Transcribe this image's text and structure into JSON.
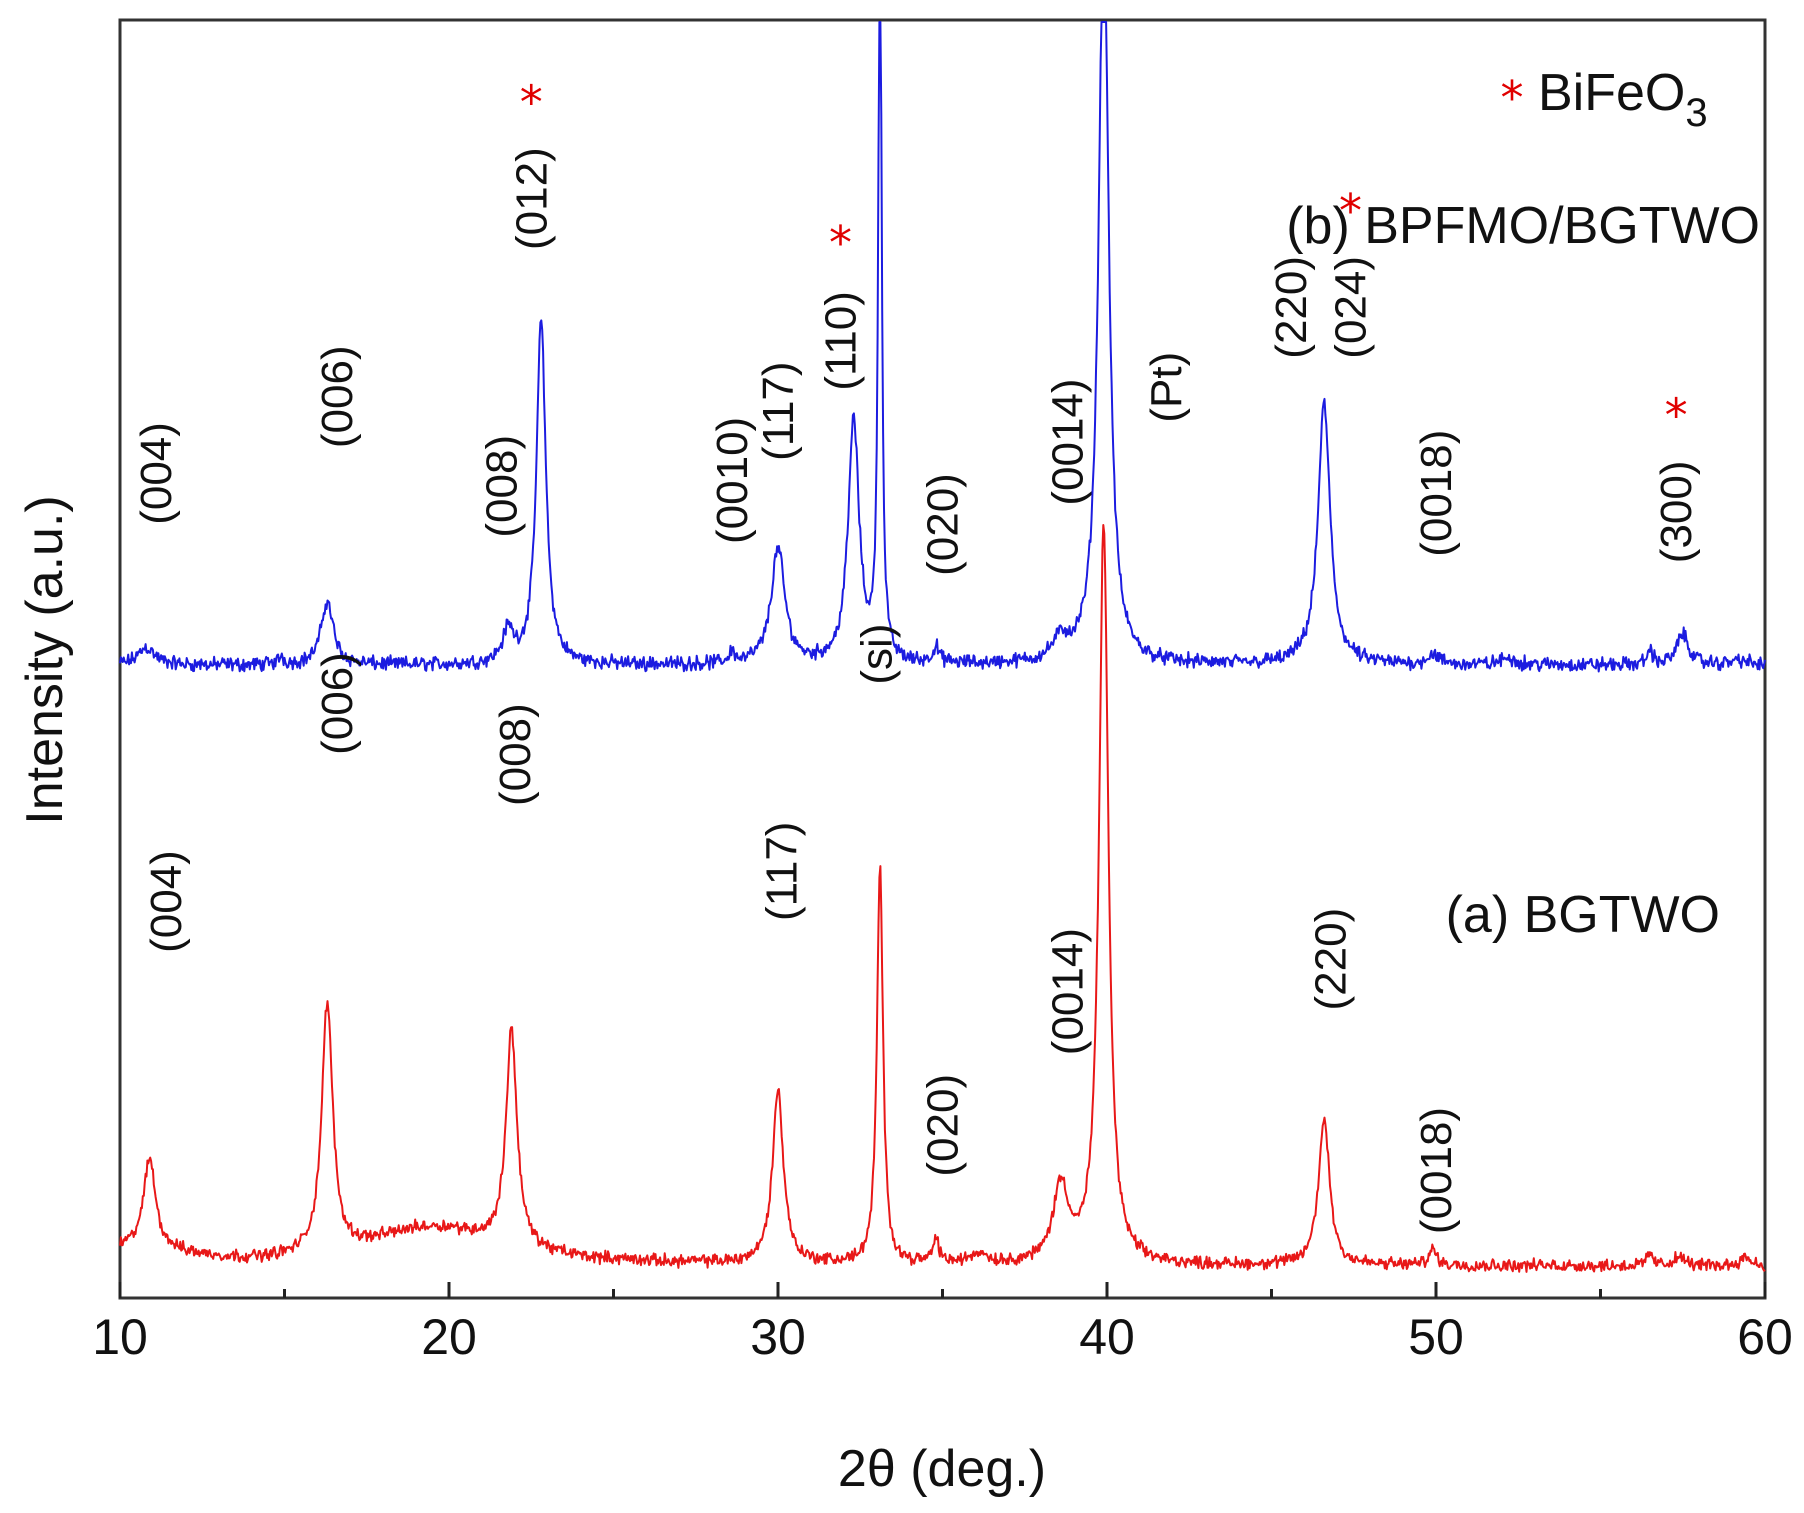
{
  "chart_data": {
    "type": "line",
    "xlabel": "2θ (deg.)",
    "ylabel": "Intensity (a.u.)",
    "xlim": [
      10,
      60
    ],
    "ylim": [
      0,
      100
    ],
    "x_ticks": [
      "10",
      "20",
      "30",
      "40",
      "50",
      "60"
    ],
    "legend": {
      "marker": "*",
      "text": "BiFeO",
      "subscript": "3",
      "color": "#e00000"
    },
    "series": [
      {
        "name": "(b) BPFMO/BGTWO",
        "color": "#1c1ce0",
        "baseline": 49.5,
        "noise": 0.7,
        "peaks": [
          {
            "x": 10.8,
            "h": 1.4,
            "w": 0.3
          },
          {
            "x": 14.9,
            "h": 0.6,
            "w": 0.1
          },
          {
            "x": 16.3,
            "h": 5.0,
            "w": 0.22
          },
          {
            "x": 21.8,
            "h": 2.5,
            "w": 0.2
          },
          {
            "x": 22.8,
            "h": 27.0,
            "w": 0.17
          },
          {
            "x": 28.6,
            "h": 0.9,
            "w": 0.1
          },
          {
            "x": 30.0,
            "h": 9.0,
            "w": 0.25
          },
          {
            "x": 32.3,
            "h": 19.0,
            "w": 0.2
          },
          {
            "x": 33.1,
            "h": 60.0,
            "w": 0.06
          },
          {
            "x": 34.8,
            "h": 1.2,
            "w": 0.12
          },
          {
            "x": 38.6,
            "h": 1.6,
            "w": 0.3
          },
          {
            "x": 39.9,
            "h": 60.0,
            "w": 0.18
          },
          {
            "x": 46.6,
            "h": 20.5,
            "w": 0.22
          },
          {
            "x": 49.9,
            "h": 0.8,
            "w": 0.2
          },
          {
            "x": 52.2,
            "h": 0.5,
            "w": 0.3
          },
          {
            "x": 56.5,
            "h": 1.2,
            "w": 0.1
          },
          {
            "x": 57.5,
            "h": 2.4,
            "w": 0.22
          },
          {
            "x": 59.2,
            "h": 0.4,
            "w": 0.3
          }
        ]
      },
      {
        "name": "(a) BGTWO",
        "color": "#e81818",
        "baseline": 2.5,
        "noise": 0.6,
        "peaks": [
          {
            "x": 10.9,
            "h": 7.0,
            "w": 0.22
          },
          {
            "x": 16.3,
            "h": 19.5,
            "w": 0.2
          },
          {
            "x": 19.5,
            "h": 3.0,
            "w": 2.5
          },
          {
            "x": 21.9,
            "h": 17.0,
            "w": 0.2
          },
          {
            "x": 30.0,
            "h": 13.5,
            "w": 0.2
          },
          {
            "x": 33.1,
            "h": 31.0,
            "w": 0.11
          },
          {
            "x": 34.8,
            "h": 1.8,
            "w": 0.12
          },
          {
            "x": 36.1,
            "h": 0.8,
            "w": 0.3
          },
          {
            "x": 38.6,
            "h": 6.0,
            "w": 0.28
          },
          {
            "x": 39.9,
            "h": 58.0,
            "w": 0.17
          },
          {
            "x": 46.6,
            "h": 11.5,
            "w": 0.2
          },
          {
            "x": 49.9,
            "h": 1.2,
            "w": 0.15
          },
          {
            "x": 56.5,
            "h": 1.0,
            "w": 0.1
          },
          {
            "x": 57.4,
            "h": 0.7,
            "w": 0.2
          },
          {
            "x": 59.4,
            "h": 0.7,
            "w": 0.2
          }
        ]
      }
    ],
    "annotations": {
      "b": [
        {
          "text": "(004)",
          "x": 11.1,
          "y": 60.5
        },
        {
          "text": "(006)",
          "x": 16.6,
          "y": 66.5
        },
        {
          "text": "(008)",
          "x": 21.6,
          "y": 59.5
        },
        {
          "text": "(012)",
          "x": 22.5,
          "y": 82.0,
          "star": true
        },
        {
          "text": "(0010)",
          "x": 28.6,
          "y": 59.0
        },
        {
          "text": "(117)",
          "x": 30.0,
          "y": 65.5
        },
        {
          "text": "(110)",
          "x": 31.9,
          "y": 71.0,
          "star": true
        },
        {
          "text": "(020)",
          "x": 35.0,
          "y": 56.5
        },
        {
          "text": "(0014)",
          "x": 38.8,
          "y": 62.0
        },
        {
          "text": "(Pt)",
          "x": 41.8,
          "y": 68.5
        },
        {
          "text": "(220)",
          "x": 45.6,
          "y": 73.5
        },
        {
          "text": "(024)",
          "x": 47.4,
          "y": 73.5,
          "star": true
        },
        {
          "text": "(0018)",
          "x": 50.0,
          "y": 58.0
        },
        {
          "text": "(300)",
          "x": 57.3,
          "y": 57.5,
          "star": true
        }
      ],
      "a": [
        {
          "text": "(004)",
          "x": 11.4,
          "y": 27.0
        },
        {
          "text": "(006)",
          "x": 16.6,
          "y": 42.5
        },
        {
          "text": "(008)",
          "x": 22.0,
          "y": 38.5
        },
        {
          "text": "(117)",
          "x": 30.1,
          "y": 29.5
        },
        {
          "text": "(si)",
          "x": 33.0,
          "y": 48.0
        },
        {
          "text": "(020)",
          "x": 35.0,
          "y": 9.5
        },
        {
          "text": "(0014)",
          "x": 38.8,
          "y": 19.0
        },
        {
          "text": "(220)",
          "x": 46.8,
          "y": 22.5
        },
        {
          "text": "(0018)",
          "x": 50.0,
          "y": 5.0
        }
      ]
    }
  }
}
